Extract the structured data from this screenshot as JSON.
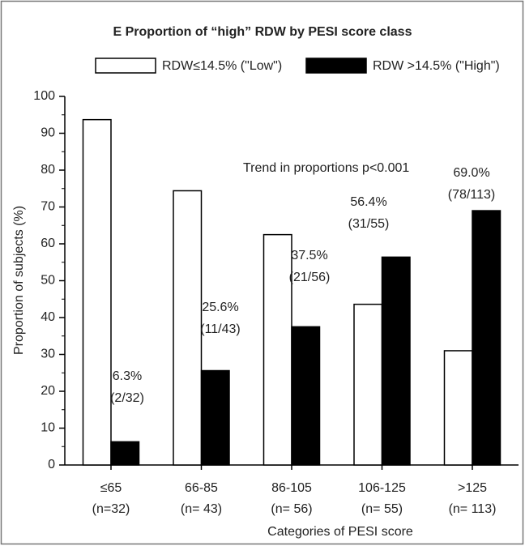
{
  "chart_data": {
    "type": "bar",
    "title": "E  Proportion of “high” RDW by PESI score class",
    "x_label": "Categories of PESI score",
    "y_label": "Proportion of subjects (%)",
    "annotation": "Trend in proportions p<0.001",
    "categories": [
      "≤65",
      "66-85",
      "86-105",
      "106-125",
      ">125"
    ],
    "category_counts": [
      "(n=32)",
      "(n= 43)",
      "(n= 56)",
      "(n= 55)",
      "(n= 113)"
    ],
    "series": [
      {
        "name": "RDW≤14.5% (\"Low\")",
        "color": "#ffffff",
        "values": [
          93.7,
          74.4,
          62.5,
          43.6,
          31.0
        ]
      },
      {
        "name": "RDW >14.5% (\"High\")",
        "color": "#000000",
        "values": [
          6.3,
          25.6,
          37.5,
          56.4,
          69.0
        ],
        "value_labels": [
          "6.3%",
          "25.6%",
          "37.5%",
          "56.4%",
          "69.0%"
        ],
        "fraction_labels": [
          "(2/32)",
          "(11/43)",
          "(21/56)",
          "(31/55)",
          "(78/113)"
        ]
      }
    ],
    "ylim": [
      0,
      100
    ],
    "yticks": [
      0,
      10,
      20,
      30,
      40,
      50,
      60,
      70,
      80,
      90,
      100
    ],
    "grid": false
  }
}
